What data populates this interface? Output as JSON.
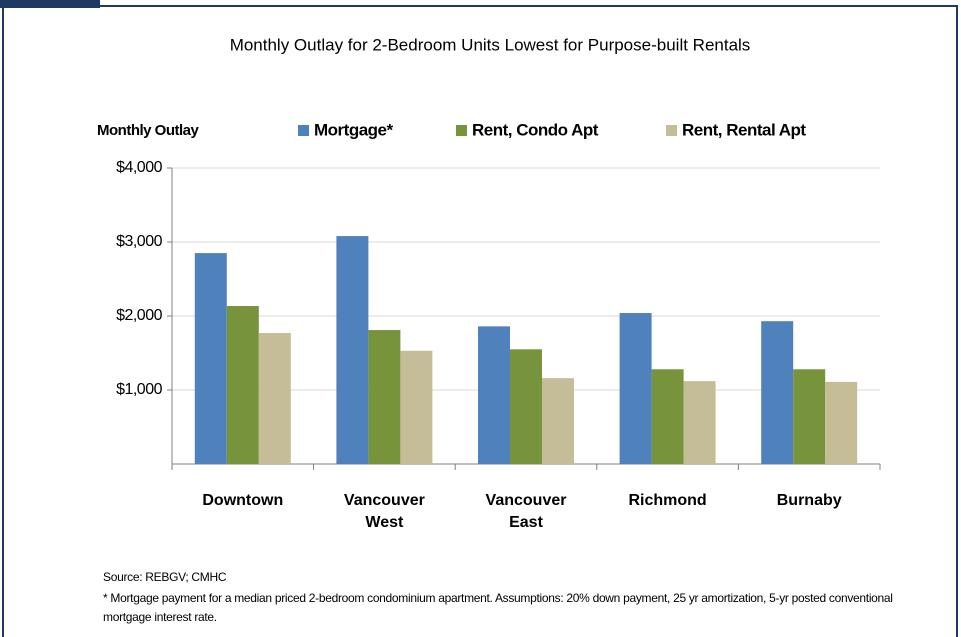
{
  "chart_data": {
    "type": "bar",
    "title": "Monthly Outlay for 2-Bedroom Units Lowest for Purpose-built Rentals",
    "y_label": "Monthly Outlay",
    "categories": [
      "Downtown",
      "Vancouver West",
      "Vancouver East",
      "Richmond",
      "Burnaby"
    ],
    "series": [
      {
        "name": "Mortgage*",
        "color": "#4f81bd",
        "values": [
          2850,
          3080,
          1860,
          2040,
          1930
        ]
      },
      {
        "name": "Rent, Condo Apt",
        "color": "#77933c",
        "values": [
          2135,
          1810,
          1550,
          1280,
          1280
        ]
      },
      {
        "name": "Rent, Rental Apt",
        "color": "#c4bd97",
        "values": [
          1770,
          1530,
          1160,
          1120,
          1110
        ]
      }
    ],
    "ylim": [
      0,
      4000
    ],
    "yticks": [
      {
        "value": 1000,
        "label": "$1,000"
      },
      {
        "value": 2000,
        "label": "$2,000"
      },
      {
        "value": 3000,
        "label": "$3,000"
      },
      {
        "value": 4000,
        "label": "$4,000"
      }
    ],
    "grid": true,
    "source": "Source: REBGV; CMHC",
    "footnote": "* Mortgage payment for a median priced 2-bedroom condominium apartment.  Assumptions: 20% down payment, 25 yr amortization, 5-yr posted conventional mortgage interest rate."
  }
}
